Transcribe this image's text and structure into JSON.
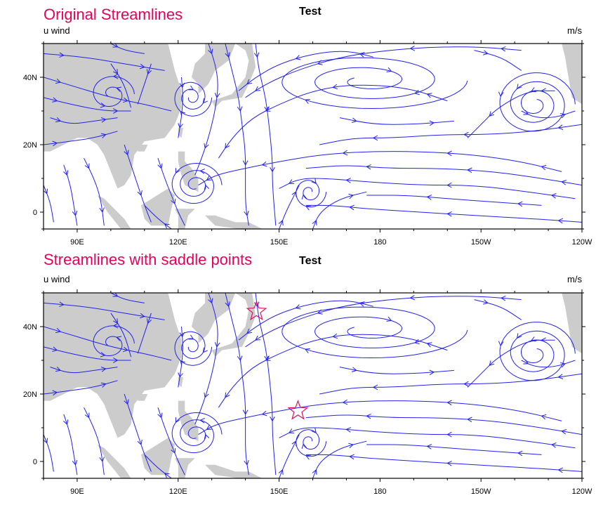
{
  "colors": {
    "streamline": "#2222ee",
    "land": "#cccccc",
    "ocean": "#ffffff",
    "headline": "#e8005a",
    "marker": "#dd1166"
  },
  "axes": {
    "x_ticks": [
      "90E",
      "120E",
      "150E",
      "180",
      "150W",
      "120W"
    ],
    "y_ticks": [
      "40N",
      "20N",
      "0"
    ]
  },
  "panels": [
    {
      "headline": "Original Streamlines",
      "title": "Test",
      "left_label": "u wind",
      "right_label": "m/s",
      "saddle_markers": []
    },
    {
      "headline": "Streamlines with saddle points",
      "title": "Test",
      "left_label": "u wind",
      "right_label": "m/s",
      "saddle_markers": [
        {
          "lon": 143.3,
          "lat": 44.5,
          "icon": "star-outline"
        },
        {
          "lon": 155.6,
          "lat": 15.0,
          "icon": "star-outline"
        }
      ]
    }
  ]
}
